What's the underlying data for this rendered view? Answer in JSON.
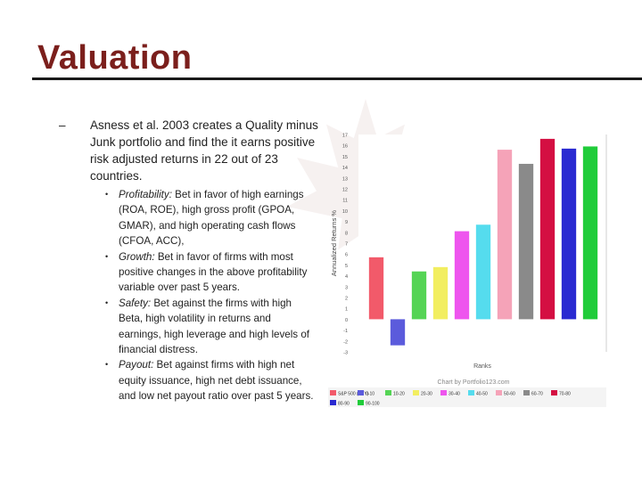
{
  "slide": {
    "title": "Valuation",
    "main_point": "Asness et al. 2003 creates a Quality minus Junk portfolio and find the it earns positive risk adjusted returns in 22 out of 23 countries.",
    "main_bullet": "–",
    "sub_bullet": "•",
    "sub_points": [
      {
        "term": "Profitability:",
        "text": " Bet in favor of high earnings (ROA, ROE), high gross profit (GPOA, GMAR), and high operating cash flows (CFOA, ACC),"
      },
      {
        "term": "Growth:",
        "text": " Bet in favor of firms with most positive changes in the above profitability variable over past 5 years."
      },
      {
        "term": "Safety:",
        "text": " Bet against the firms with high Beta, high volatility in returns and earnings, high leverage and high levels of financial distress."
      },
      {
        "term": "Payout:",
        "text": " Bet against firms with high net equity issuance, high net debt issuance, and low net payout ratio over past 5 years."
      }
    ]
  },
  "chart_data": {
    "type": "bar",
    "categories": [
      "S&P 500 (SPY)",
      "0-10",
      "10-20",
      "20-30",
      "30-40",
      "40-50",
      "50-60",
      "60-70",
      "70-80",
      "80-90",
      "90-100"
    ],
    "values": [
      5.7,
      -2.4,
      4.4,
      4.8,
      8.1,
      8.7,
      15.6,
      14.3,
      16.6,
      15.7,
      15.9
    ],
    "colors": [
      "#f25a6a",
      "#5b5bdc",
      "#55d455",
      "#f2ee60",
      "#ee55ee",
      "#55dcee",
      "#f5a3b8",
      "#8a8a8a",
      "#d40f42",
      "#2a2ad1",
      "#20cc3a"
    ],
    "title": "",
    "xlabel": "Ranks",
    "ylabel": "Annualized Returns %",
    "ylim": [
      -3,
      17
    ],
    "yticks": [
      "-3",
      "-2",
      "-1",
      "0",
      "1",
      "2",
      "3",
      "4",
      "5",
      "6",
      "7",
      "8",
      "9",
      "10",
      "11",
      "12",
      "13",
      "14",
      "15",
      "16",
      "17"
    ],
    "credit": "Chart by Portfolio123.com",
    "legend": [
      "S&P 500 (SPY)",
      "0-10",
      "10-20",
      "20-30",
      "30-40",
      "40-50",
      "50-60",
      "60-70",
      "70-80",
      "80-90",
      "90-100"
    ],
    "legend_position": "bottom"
  }
}
